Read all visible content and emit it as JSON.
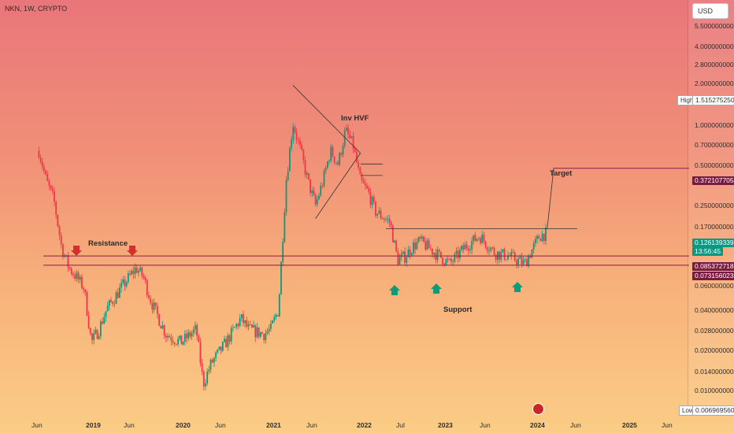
{
  "symbol_label": "NKN, 1W, CRYPTO",
  "currency_button": "USD",
  "y_axis_labels": [
    "5.500000000",
    "4.000000000",
    "2.800000000",
    "2.000000000",
    "1.000000000",
    "0.700000000",
    "0.500000000",
    "0.250000000",
    "0.170000000",
    "0.060000000",
    "0.040000000",
    "0.028000000",
    "0.020000000",
    "0.014000000",
    "0.010000000"
  ],
  "price_tags": {
    "high_label": "High",
    "high_value": "1.515275250",
    "target_value": "0.372107705",
    "current_value": "0.126139339",
    "countdown": "13:56:45",
    "level1_value": "0.085372718",
    "level2_value": "0.073156023",
    "low_label": "Low",
    "low_value": "0.006969560"
  },
  "x_axis_labels": [
    "Jun",
    "2019",
    "Jun",
    "2020",
    "Jun",
    "2021",
    "Jun",
    "2022",
    "Jul",
    "2023",
    "Jun",
    "2024",
    "Jun",
    "2025",
    "Jun"
  ],
  "annotations": {
    "resistance": "Resistance",
    "support": "Support",
    "target": "Target",
    "inv_hvf": "Inv HVF"
  },
  "colors": {
    "up": "#089981",
    "down": "#f23645",
    "level_line": "#8b1a4a",
    "target_tag": "#7b1a3e",
    "current_tag": "#089981",
    "arrow_down": "#d32f2f",
    "arrow_up": "#0f9b78"
  },
  "chart_data": {
    "type": "candlestick",
    "title": "NKN, 1W, CRYPTO",
    "scale": "log",
    "ylim": [
      0.0065,
      5.5
    ],
    "x_range": [
      "2018-04",
      "2025-08"
    ],
    "waypoints": [
      {
        "date": "2018-05",
        "price": 0.5
      },
      {
        "date": "2018-06",
        "price": 0.3
      },
      {
        "date": "2018-07",
        "price": 0.22
      },
      {
        "date": "2018-08",
        "price": 0.1
      },
      {
        "date": "2018-09",
        "price": 0.07
      },
      {
        "date": "2018-10",
        "price": 0.06
      },
      {
        "date": "2018-11",
        "price": 0.05
      },
      {
        "date": "2018-12",
        "price": 0.02
      },
      {
        "date": "2019-01",
        "price": 0.025
      },
      {
        "date": "2019-02",
        "price": 0.035
      },
      {
        "date": "2019-04",
        "price": 0.05
      },
      {
        "date": "2019-06",
        "price": 0.07
      },
      {
        "date": "2019-07",
        "price": 0.06
      },
      {
        "date": "2019-08",
        "price": 0.04
      },
      {
        "date": "2019-09",
        "price": 0.03
      },
      {
        "date": "2019-10",
        "price": 0.023
      },
      {
        "date": "2019-12",
        "price": 0.02
      },
      {
        "date": "2020-02",
        "price": 0.025
      },
      {
        "date": "2020-03",
        "price": 0.01
      },
      {
        "date": "2020-04",
        "price": 0.014
      },
      {
        "date": "2020-06",
        "price": 0.02
      },
      {
        "date": "2020-08",
        "price": 0.03
      },
      {
        "date": "2020-09",
        "price": 0.025
      },
      {
        "date": "2020-11",
        "price": 0.023
      },
      {
        "date": "2020-12",
        "price": 0.025
      },
      {
        "date": "2021-01",
        "price": 0.035
      },
      {
        "date": "2021-02",
        "price": 0.3
      },
      {
        "date": "2021-03",
        "price": 0.8
      },
      {
        "date": "2021-04",
        "price": 0.5
      },
      {
        "date": "2021-05",
        "price": 0.3
      },
      {
        "date": "2021-06",
        "price": 0.2
      },
      {
        "date": "2021-07",
        "price": 0.3
      },
      {
        "date": "2021-08",
        "price": 0.5
      },
      {
        "date": "2021-09",
        "price": 0.4
      },
      {
        "date": "2021-10",
        "price": 0.7
      },
      {
        "date": "2021-11",
        "price": 0.55
      },
      {
        "date": "2021-12",
        "price": 0.3
      },
      {
        "date": "2022-01",
        "price": 0.25
      },
      {
        "date": "2022-02",
        "price": 0.18
      },
      {
        "date": "2022-04",
        "price": 0.15
      },
      {
        "date": "2022-05",
        "price": 0.08
      },
      {
        "date": "2022-06",
        "price": 0.085
      },
      {
        "date": "2022-07",
        "price": 0.1
      },
      {
        "date": "2022-08",
        "price": 0.11
      },
      {
        "date": "2022-10",
        "price": 0.09
      },
      {
        "date": "2022-12",
        "price": 0.075
      },
      {
        "date": "2023-02",
        "price": 0.1
      },
      {
        "date": "2023-04",
        "price": 0.12
      },
      {
        "date": "2023-06",
        "price": 0.09
      },
      {
        "date": "2023-08",
        "price": 0.085
      },
      {
        "date": "2023-10",
        "price": 0.075
      },
      {
        "date": "2023-12",
        "price": 0.12
      },
      {
        "date": "2024-01",
        "price": 0.126
      }
    ],
    "levels": {
      "resistance_top": 0.1,
      "level1": 0.085372718,
      "level2": 0.073156023,
      "range_top": 0.135,
      "target": 0.372107705
    }
  }
}
